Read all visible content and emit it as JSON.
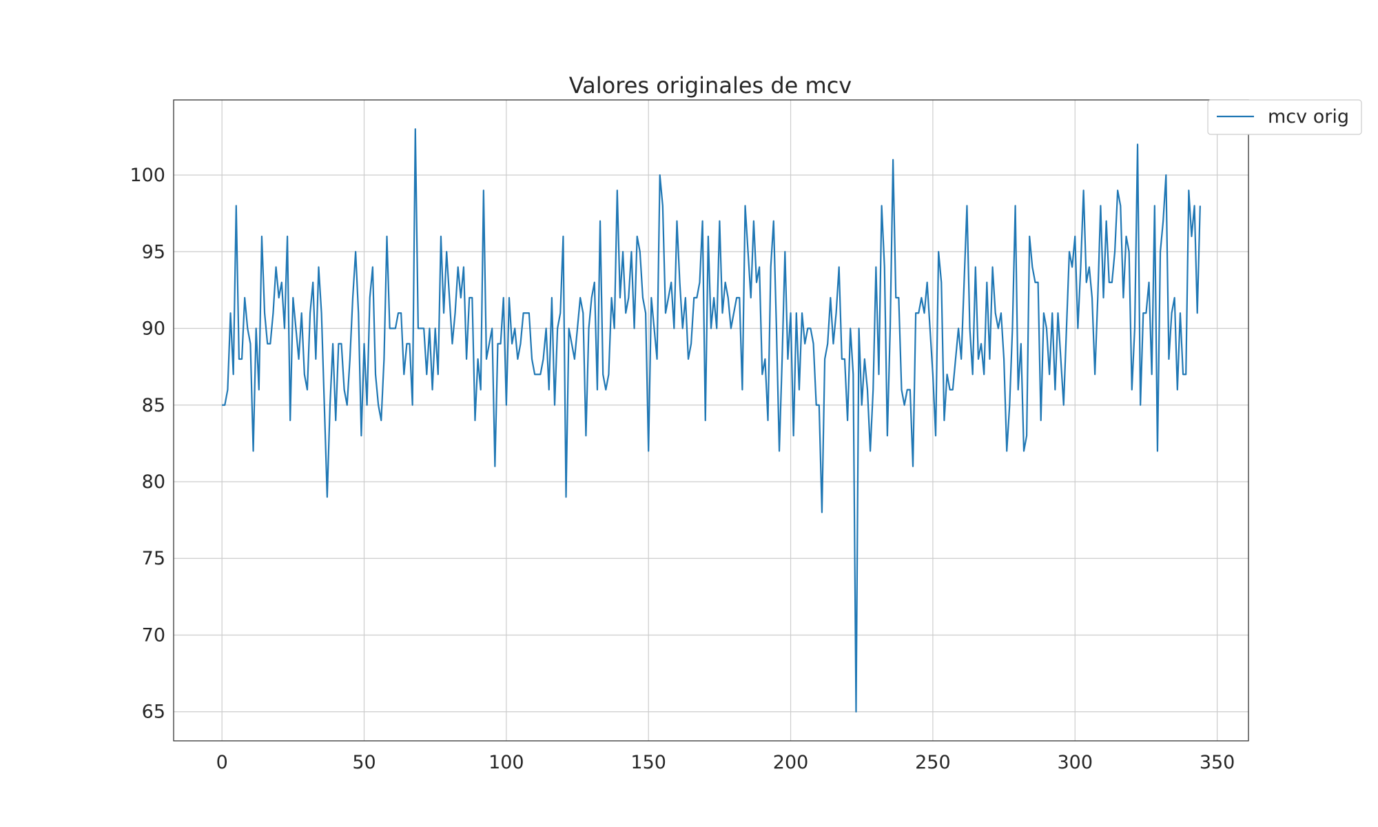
{
  "chart_data": {
    "type": "line",
    "title": "Valores originales de mcv",
    "xlabel": "",
    "ylabel": "",
    "xlim": [
      -17,
      361
    ],
    "ylim": [
      63.1,
      104.9
    ],
    "xticks": [
      0,
      50,
      100,
      150,
      200,
      250,
      300,
      350
    ],
    "yticks": [
      65,
      70,
      75,
      80,
      85,
      90,
      95,
      100
    ],
    "grid": true,
    "legend_position": "upper-right-outside",
    "series": [
      {
        "name": "mcv orig",
        "color": "#1f77b4",
        "values": [
          85,
          85,
          86,
          91,
          87,
          98,
          88,
          88,
          92,
          90,
          89,
          82,
          90,
          86,
          96,
          91,
          89,
          89,
          91,
          94,
          92,
          93,
          90,
          96,
          84,
          92,
          90,
          88,
          91,
          87,
          86,
          91,
          93,
          88,
          94,
          91,
          85,
          79,
          85,
          89,
          84,
          89,
          89,
          86,
          85,
          88,
          92,
          95,
          91,
          83,
          89,
          85,
          92,
          94,
          87,
          85,
          84,
          88,
          96,
          90,
          90,
          90,
          91,
          91,
          87,
          89,
          89,
          85,
          103,
          90,
          90,
          90,
          87,
          90,
          86,
          90,
          87,
          96,
          91,
          95,
          92,
          89,
          91,
          94,
          92,
          94,
          88,
          92,
          92,
          84,
          88,
          86,
          99,
          88,
          89,
          90,
          81,
          89,
          89,
          92,
          85,
          92,
          89,
          90,
          88,
          89,
          91,
          91,
          91,
          88,
          87,
          87,
          87,
          88,
          90,
          86,
          92,
          85,
          90,
          91,
          96,
          79,
          90,
          89,
          88,
          90,
          92,
          91,
          83,
          90,
          92,
          93,
          86,
          97,
          87,
          86,
          87,
          92,
          90,
          99,
          92,
          95,
          91,
          92,
          95,
          90,
          96,
          95,
          92,
          91,
          82,
          92,
          90,
          88,
          100,
          98,
          91,
          92,
          93,
          90,
          97,
          93,
          90,
          92,
          88,
          89,
          92,
          92,
          93,
          97,
          84,
          96,
          90,
          92,
          90,
          97,
          91,
          93,
          92,
          90,
          91,
          92,
          92,
          86,
          98,
          95,
          92,
          97,
          93,
          94,
          87,
          88,
          84,
          94,
          97,
          90,
          82,
          88,
          95,
          88,
          91,
          83,
          91,
          86,
          91,
          89,
          90,
          90,
          89,
          85,
          85,
          78,
          88,
          89,
          92,
          89,
          91,
          94,
          88,
          88,
          84,
          90,
          87,
          65,
          90,
          85,
          88,
          86,
          82,
          86,
          94,
          87,
          98,
          94,
          83,
          90,
          101,
          92,
          92,
          86,
          85,
          86,
          86,
          81,
          91,
          91,
          92,
          91,
          93,
          90,
          87,
          83,
          95,
          93,
          84,
          87,
          86,
          86,
          88,
          90,
          88,
          93,
          98,
          90,
          87,
          94,
          88,
          89,
          87,
          93,
          88,
          94,
          91,
          90,
          91,
          88,
          82,
          85,
          90,
          98,
          86,
          89,
          82,
          83,
          96,
          94,
          93,
          93,
          84,
          91,
          90,
          87,
          91,
          86,
          91,
          88,
          85,
          90,
          95,
          94,
          96,
          90,
          94,
          99,
          93,
          94,
          92,
          87,
          92,
          98,
          92,
          97,
          93,
          93,
          95,
          99,
          98,
          92,
          96,
          95,
          86,
          90,
          102,
          85,
          91,
          91,
          93,
          87,
          98,
          82,
          95,
          97,
          100,
          88,
          91,
          92,
          86,
          91,
          87,
          87,
          99,
          96,
          98,
          91,
          98
        ]
      }
    ]
  }
}
